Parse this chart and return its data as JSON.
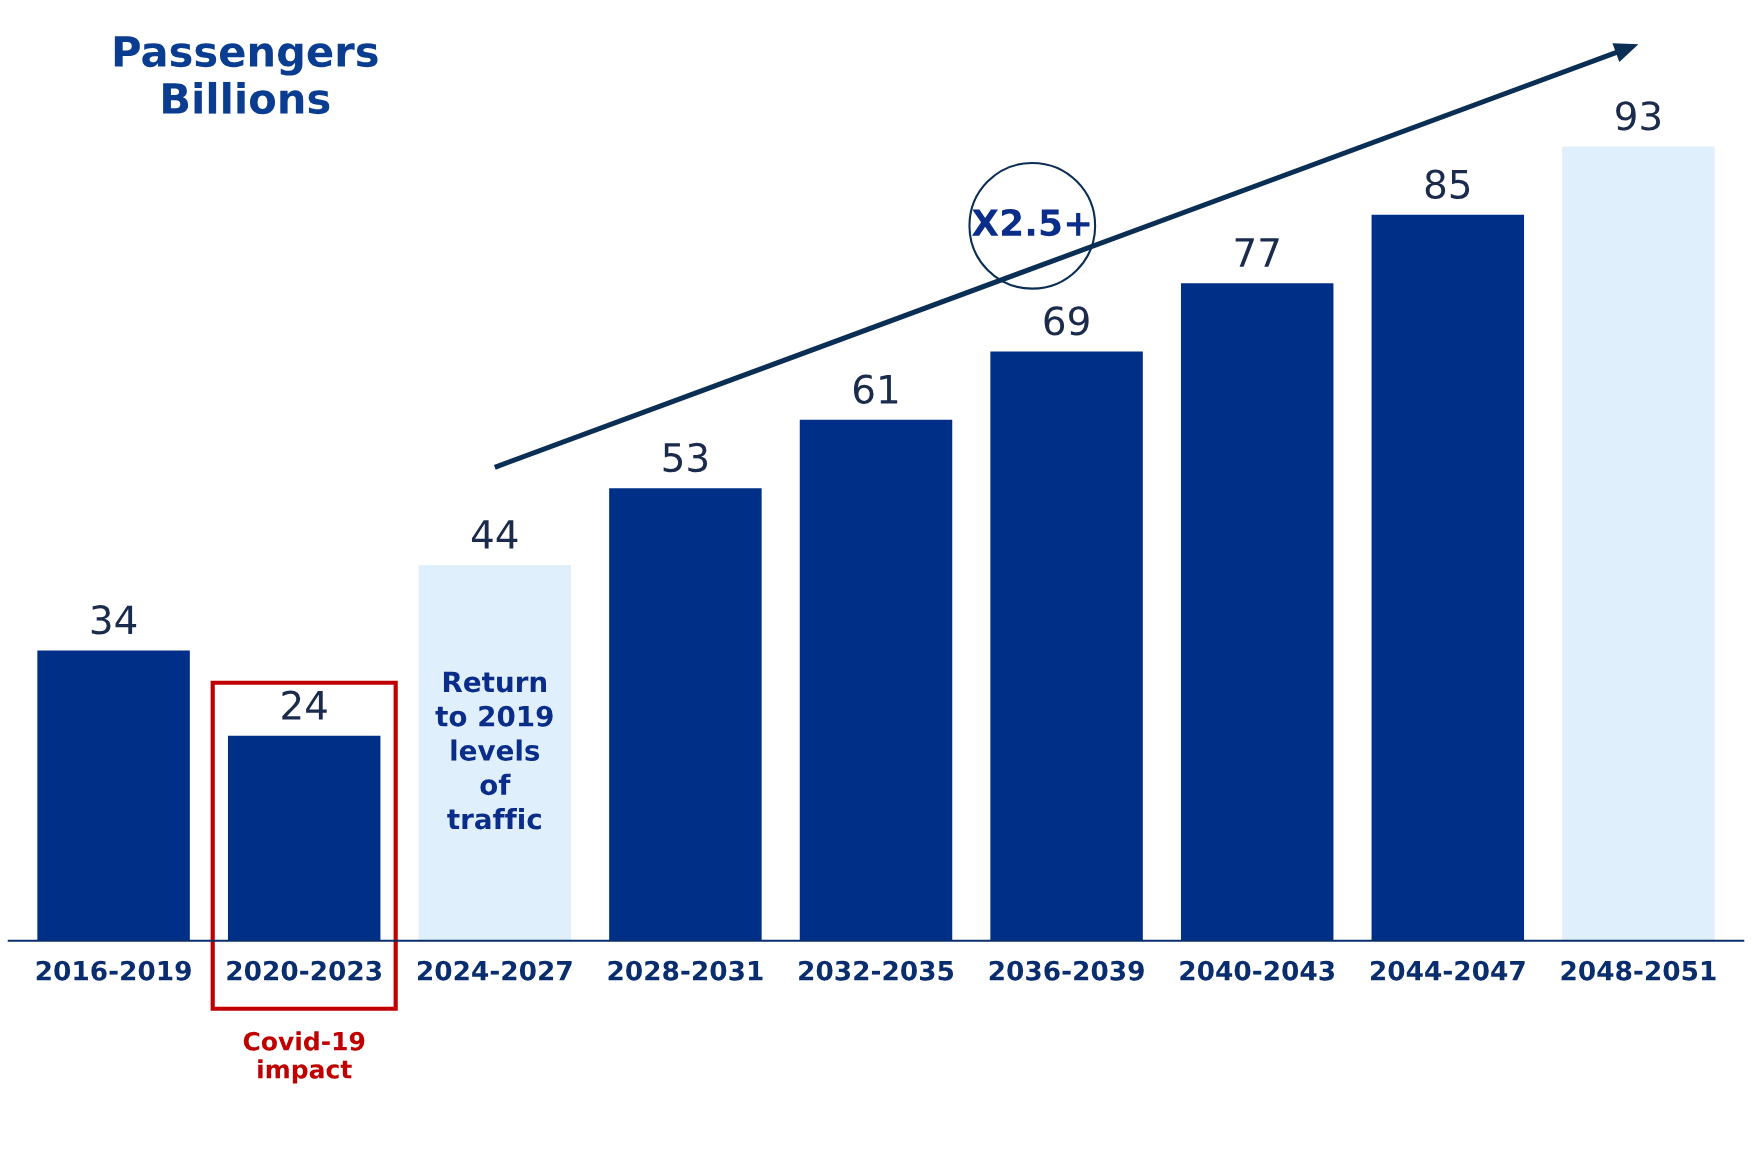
{
  "chart_data": {
    "type": "bar",
    "title": "Passengers\nBillions",
    "categories": [
      "2016-2019",
      "2020-2023",
      "2024-2027",
      "2028-2031",
      "2032-2035",
      "2036-2039",
      "2040-2043",
      "2044-2047",
      "2048-2051"
    ],
    "values": [
      34,
      24,
      44,
      53,
      61,
      69,
      77,
      85,
      93
    ],
    "colors": [
      "#002f87",
      "#002f87",
      "#e0effc",
      "#002f87",
      "#002f87",
      "#002f87",
      "#002f87",
      "#002f87",
      "#e0effc"
    ],
    "data_labels": true,
    "annotations": [
      "X2.5+",
      "Return\nto 2019\nlevels\nof\ntraffic",
      "Covid-19\nimpact"
    ]
  }
}
